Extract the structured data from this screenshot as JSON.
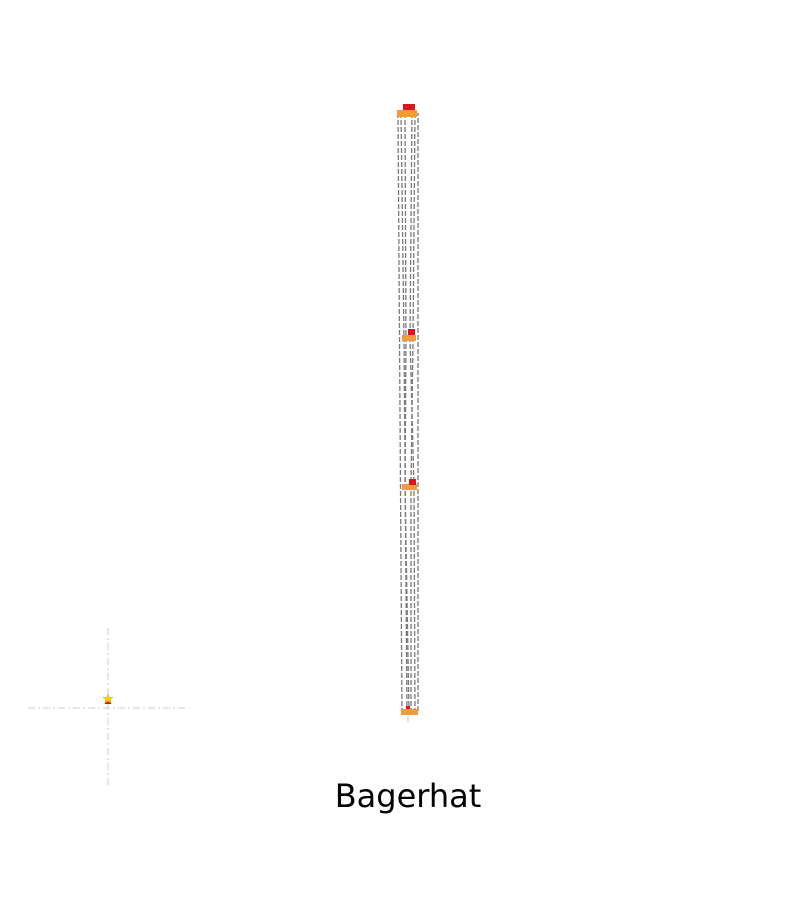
{
  "map": {
    "title": "Bagerhat",
    "colors": {
      "route_line": "#7a7a7a",
      "crosshair": "#d6d6d6",
      "node_base": "#f39a3c",
      "node_marker": "#e0141e",
      "origin_marker": "#f5d51e"
    },
    "icons": {
      "origin": "star-icon",
      "node": "flag-icon"
    },
    "nodes": [
      {
        "name": "node-top"
      },
      {
        "name": "node-upper-middle"
      },
      {
        "name": "node-lower-middle"
      },
      {
        "name": "node-bottom"
      }
    ]
  }
}
